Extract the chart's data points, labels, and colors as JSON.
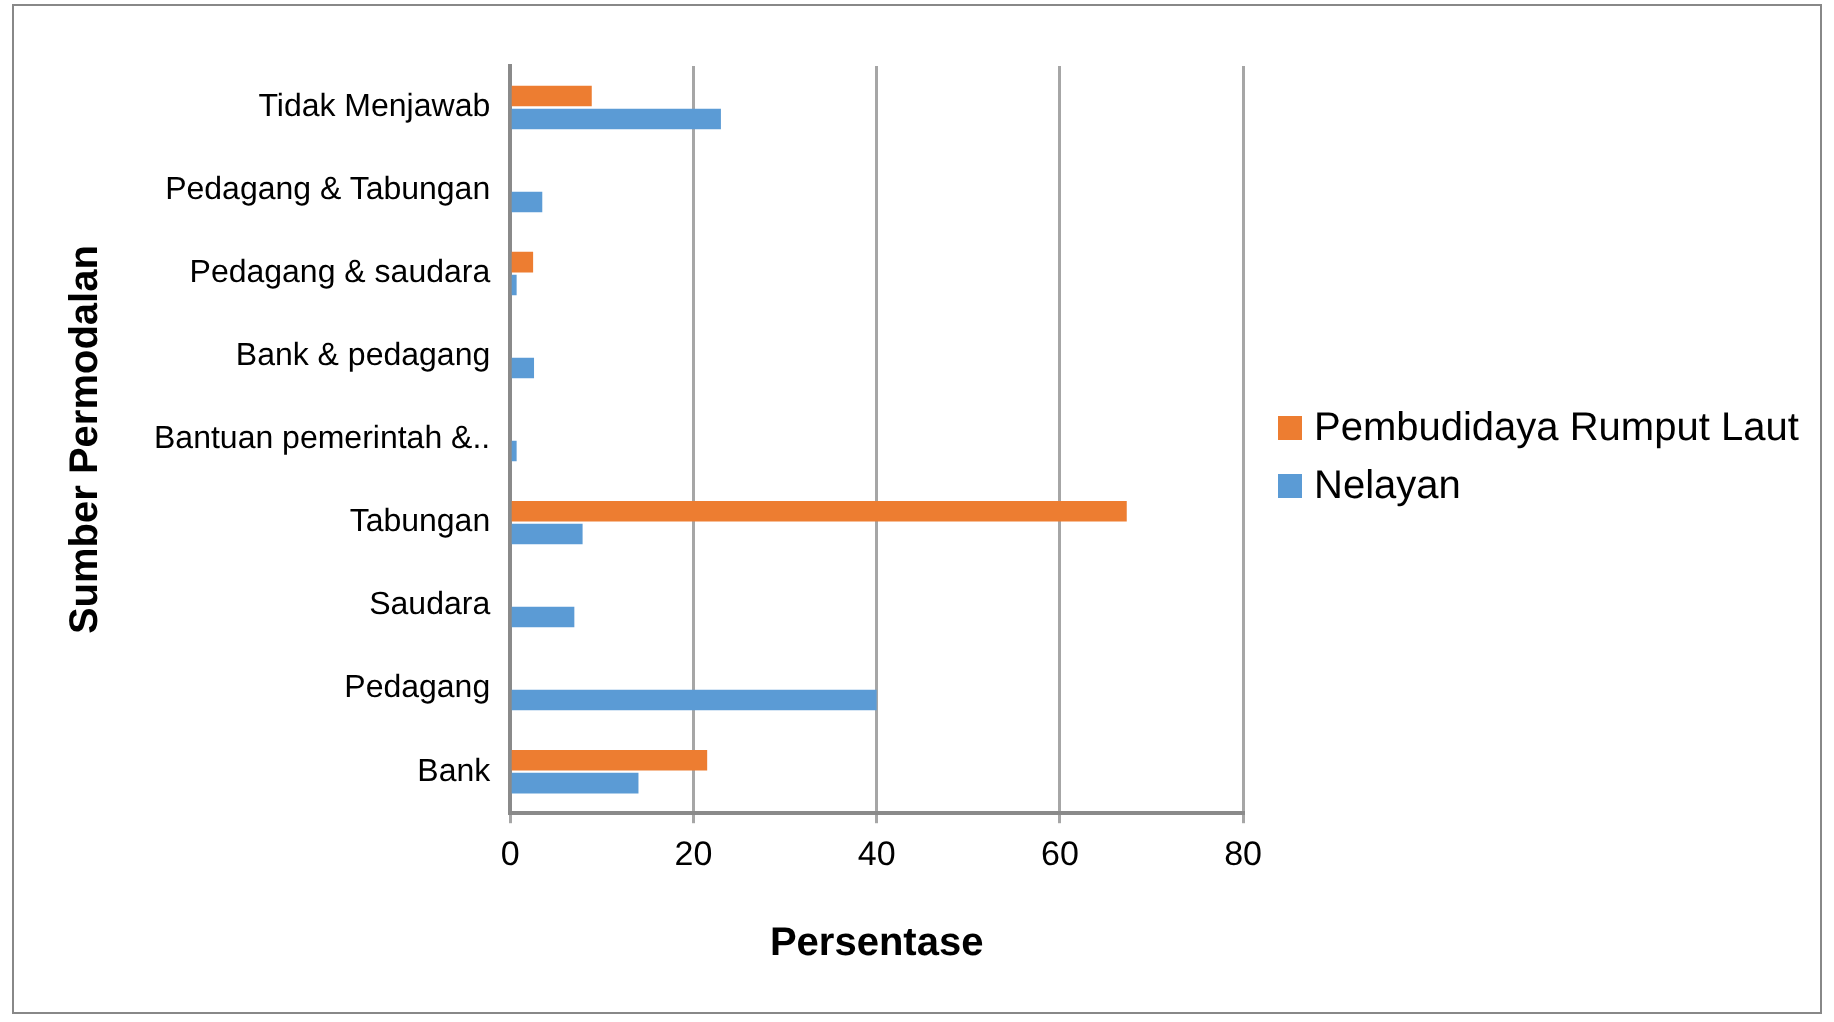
{
  "chart_data": {
    "type": "bar",
    "orientation": "horizontal",
    "xlabel": "Persentase",
    "ylabel": "Sumber Permodalan",
    "categories": [
      "Tidak Menjawab",
      "Pedagang & Tabungan",
      "Pedagang & saudara",
      "Bank & pedagang",
      "Bantuan pemerintah &..",
      "Tabungan",
      "Saudara",
      "Pedagang",
      "Bank"
    ],
    "series": [
      {
        "name": "Pembudidaya Rumput Laut",
        "color": "#ed7d31",
        "values": [
          8.9,
          null,
          2.5,
          null,
          null,
          67.3,
          null,
          null,
          21.5
        ]
      },
      {
        "name": "Nelayan",
        "color": "#5b9bd5",
        "values": [
          23,
          3.5,
          0.7,
          2.6,
          0.7,
          7.9,
          7,
          40,
          14
        ]
      }
    ],
    "xlim": [
      0,
      80
    ],
    "xticks": [
      0,
      20,
      40,
      60,
      80
    ],
    "grid": "x",
    "legend": "right"
  }
}
